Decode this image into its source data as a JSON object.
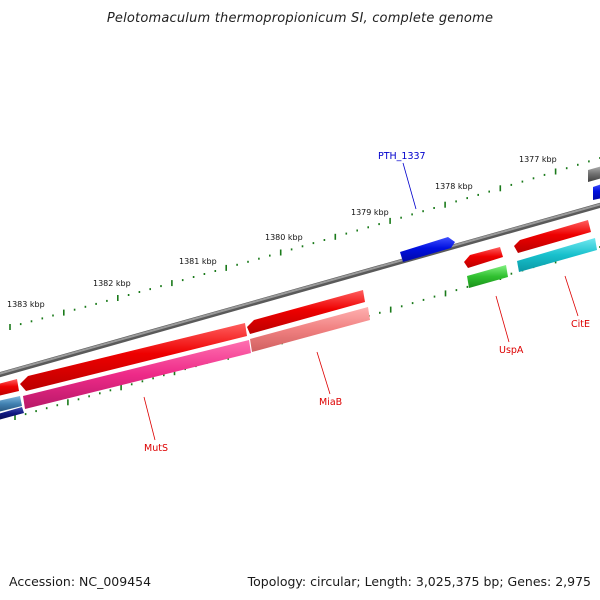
{
  "title": "Pelotomaculum thermopropionicum SI, complete genome",
  "footer": {
    "accession": "Accession: NC_009454",
    "topology": "Topology: circular; Length: 3,025,375 bp; Genes: 2,975"
  },
  "colors": {
    "backbone": "#808080",
    "tick": "#1a7a1a",
    "red_gene": "#ee0000",
    "blue_gene": "#0010e0",
    "pink_gene": "#ee2a88",
    "salmon_gene": "#f08080",
    "cyan_gene": "#18c0cc",
    "green_gene": "#30c030",
    "navy_gene": "#101880",
    "steel_gene": "#4080b0",
    "gray_gene": "#707070",
    "label_red": "#dd0000",
    "label_blue": "#0000cc"
  },
  "scale_labels": [
    "1377 kbp",
    "1378 kbp",
    "1379 kbp",
    "1380 kbp",
    "1381 kbp",
    "1382 kbp",
    "1383 kbp"
  ],
  "gene_labels": [
    {
      "id": "pth1337",
      "text": "PTH_1337",
      "color": "#0000cc"
    },
    {
      "id": "usp",
      "text": "UspA",
      "color": "#dd0000"
    },
    {
      "id": "cite",
      "text": "CitE",
      "color": "#dd0000"
    },
    {
      "id": "miab",
      "text": "MiaB",
      "color": "#dd0000"
    },
    {
      "id": "muts",
      "text": "MutS",
      "color": "#dd0000"
    }
  ]
}
